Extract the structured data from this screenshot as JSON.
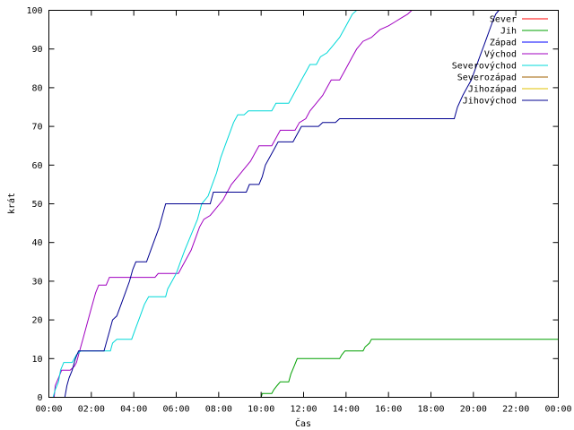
{
  "chart_data": {
    "type": "line",
    "xlabel": "Čas",
    "ylabel": "krát",
    "xlim": [
      0,
      24
    ],
    "ylim": [
      0,
      100
    ],
    "x_ticks": [
      {
        "v": 0,
        "label": "00:00"
      },
      {
        "v": 2,
        "label": "02:00"
      },
      {
        "v": 4,
        "label": "04:00"
      },
      {
        "v": 6,
        "label": "06:00"
      },
      {
        "v": 8,
        "label": "08:00"
      },
      {
        "v": 10,
        "label": "10:00"
      },
      {
        "v": 12,
        "label": "12:00"
      },
      {
        "v": 14,
        "label": "14:00"
      },
      {
        "v": 16,
        "label": "16:00"
      },
      {
        "v": 18,
        "label": "18:00"
      },
      {
        "v": 20,
        "label": "20:00"
      },
      {
        "v": 22,
        "label": "22:00"
      },
      {
        "v": 24,
        "label": "00:00"
      }
    ],
    "y_ticks": [
      {
        "v": 0,
        "label": "0"
      },
      {
        "v": 10,
        "label": "10"
      },
      {
        "v": 20,
        "label": "20"
      },
      {
        "v": 30,
        "label": "30"
      },
      {
        "v": 40,
        "label": "40"
      },
      {
        "v": 50,
        "label": "50"
      },
      {
        "v": 60,
        "label": "60"
      },
      {
        "v": 70,
        "label": "70"
      },
      {
        "v": 80,
        "label": "80"
      },
      {
        "v": 90,
        "label": "90"
      },
      {
        "v": 100,
        "label": "100"
      }
    ],
    "grid": false,
    "legend_position": "top-right",
    "series": [
      {
        "name": "Sever",
        "color": "#ff0000",
        "points": []
      },
      {
        "name": "Jih",
        "color": "#00a000",
        "points": [
          [
            10.0,
            0
          ],
          [
            10.05,
            1
          ],
          [
            10.5,
            1
          ],
          [
            10.6,
            2
          ],
          [
            10.75,
            3
          ],
          [
            10.9,
            4
          ],
          [
            11.3,
            4
          ],
          [
            11.4,
            6
          ],
          [
            11.55,
            8
          ],
          [
            11.7,
            10
          ],
          [
            13.7,
            10
          ],
          [
            13.8,
            11
          ],
          [
            13.95,
            12
          ],
          [
            14.8,
            12
          ],
          [
            14.9,
            13
          ],
          [
            15.1,
            14
          ],
          [
            15.2,
            15
          ],
          [
            24.0,
            15
          ]
        ]
      },
      {
        "name": "Západ",
        "color": "#0000ff",
        "points": []
      },
      {
        "name": "Východ",
        "color": "#a000c0",
        "points": [
          [
            0.25,
            0
          ],
          [
            0.3,
            3
          ],
          [
            0.45,
            5
          ],
          [
            0.6,
            7
          ],
          [
            1.0,
            7
          ],
          [
            1.2,
            8
          ],
          [
            1.3,
            9
          ],
          [
            1.4,
            11
          ],
          [
            1.6,
            15
          ],
          [
            1.8,
            19
          ],
          [
            2.0,
            23
          ],
          [
            2.2,
            27
          ],
          [
            2.35,
            29
          ],
          [
            2.7,
            29
          ],
          [
            2.85,
            31
          ],
          [
            5.0,
            31
          ],
          [
            5.15,
            32
          ],
          [
            6.1,
            32
          ],
          [
            6.3,
            34
          ],
          [
            6.5,
            36
          ],
          [
            6.7,
            38
          ],
          [
            6.9,
            41
          ],
          [
            7.1,
            44
          ],
          [
            7.3,
            46
          ],
          [
            7.6,
            47
          ],
          [
            7.9,
            49
          ],
          [
            8.2,
            51
          ],
          [
            8.4,
            53
          ],
          [
            8.6,
            55
          ],
          [
            8.9,
            57
          ],
          [
            9.2,
            59
          ],
          [
            9.5,
            61
          ],
          [
            9.7,
            63
          ],
          [
            9.9,
            65
          ],
          [
            10.5,
            65
          ],
          [
            10.7,
            67
          ],
          [
            10.9,
            69
          ],
          [
            11.6,
            69
          ],
          [
            11.8,
            71
          ],
          [
            12.1,
            72
          ],
          [
            12.3,
            74
          ],
          [
            12.6,
            76
          ],
          [
            12.9,
            78
          ],
          [
            13.1,
            80
          ],
          [
            13.3,
            82
          ],
          [
            13.7,
            82
          ],
          [
            13.9,
            84
          ],
          [
            14.1,
            86
          ],
          [
            14.3,
            88
          ],
          [
            14.5,
            90
          ],
          [
            14.8,
            92
          ],
          [
            15.2,
            93
          ],
          [
            15.6,
            95
          ],
          [
            16.0,
            96
          ],
          [
            16.3,
            97
          ],
          [
            16.6,
            98
          ],
          [
            16.9,
            99
          ],
          [
            17.1,
            100
          ],
          [
            17.3,
            100
          ]
        ]
      },
      {
        "name": "Severovýchod",
        "color": "#00d8d8",
        "points": [
          [
            0.2,
            0
          ],
          [
            0.3,
            2
          ],
          [
            0.45,
            4
          ],
          [
            0.55,
            7
          ],
          [
            0.7,
            9
          ],
          [
            1.1,
            9
          ],
          [
            1.3,
            11
          ],
          [
            1.5,
            12
          ],
          [
            2.9,
            12
          ],
          [
            3.0,
            14
          ],
          [
            3.2,
            15
          ],
          [
            3.9,
            15
          ],
          [
            4.1,
            18
          ],
          [
            4.3,
            21
          ],
          [
            4.5,
            24
          ],
          [
            4.7,
            26
          ],
          [
            5.5,
            26
          ],
          [
            5.6,
            28
          ],
          [
            5.8,
            30
          ],
          [
            6.0,
            32
          ],
          [
            6.2,
            35
          ],
          [
            6.4,
            38
          ],
          [
            6.7,
            42
          ],
          [
            7.0,
            46
          ],
          [
            7.2,
            50
          ],
          [
            7.5,
            52
          ],
          [
            7.7,
            55
          ],
          [
            7.9,
            58
          ],
          [
            8.1,
            62
          ],
          [
            8.3,
            65
          ],
          [
            8.5,
            68
          ],
          [
            8.7,
            71
          ],
          [
            8.9,
            73
          ],
          [
            9.2,
            73
          ],
          [
            9.4,
            74
          ],
          [
            10.5,
            74
          ],
          [
            10.7,
            76
          ],
          [
            11.3,
            76
          ],
          [
            11.5,
            78
          ],
          [
            11.7,
            80
          ],
          [
            11.9,
            82
          ],
          [
            12.1,
            84
          ],
          [
            12.3,
            86
          ],
          [
            12.6,
            86
          ],
          [
            12.8,
            88
          ],
          [
            13.1,
            89
          ],
          [
            13.4,
            91
          ],
          [
            13.7,
            93
          ],
          [
            13.9,
            95
          ],
          [
            14.1,
            97
          ],
          [
            14.3,
            99
          ],
          [
            14.5,
            100
          ],
          [
            14.7,
            100
          ]
        ]
      },
      {
        "name": "Severozápad",
        "color": "#a06000",
        "points": []
      },
      {
        "name": "Jihozápad",
        "color": "#e0c000",
        "points": []
      },
      {
        "name": "Jihovýchod",
        "color": "#000090",
        "points": [
          [
            0.75,
            0
          ],
          [
            0.85,
            3
          ],
          [
            0.95,
            5
          ],
          [
            1.1,
            7
          ],
          [
            1.25,
            10
          ],
          [
            1.4,
            12
          ],
          [
            2.6,
            12
          ],
          [
            2.7,
            14
          ],
          [
            2.85,
            17
          ],
          [
            3.0,
            20
          ],
          [
            3.2,
            21
          ],
          [
            3.4,
            24
          ],
          [
            3.6,
            27
          ],
          [
            3.8,
            30
          ],
          [
            3.95,
            33
          ],
          [
            4.1,
            35
          ],
          [
            4.6,
            35
          ],
          [
            4.8,
            38
          ],
          [
            5.0,
            41
          ],
          [
            5.2,
            44
          ],
          [
            5.35,
            47
          ],
          [
            5.5,
            50
          ],
          [
            7.6,
            50
          ],
          [
            7.75,
            53
          ],
          [
            9.3,
            53
          ],
          [
            9.45,
            55
          ],
          [
            9.9,
            55
          ],
          [
            10.05,
            57
          ],
          [
            10.2,
            60
          ],
          [
            10.4,
            62
          ],
          [
            10.6,
            64
          ],
          [
            10.8,
            66
          ],
          [
            11.5,
            66
          ],
          [
            11.7,
            68
          ],
          [
            11.9,
            70
          ],
          [
            12.7,
            70
          ],
          [
            12.9,
            71
          ],
          [
            13.5,
            71
          ],
          [
            13.7,
            72
          ],
          [
            19.1,
            72
          ],
          [
            19.25,
            75
          ],
          [
            19.5,
            78
          ],
          [
            19.7,
            80
          ],
          [
            19.9,
            82
          ],
          [
            20.1,
            85
          ],
          [
            20.3,
            88
          ],
          [
            20.5,
            91
          ],
          [
            20.7,
            94
          ],
          [
            20.9,
            97
          ],
          [
            21.05,
            99
          ],
          [
            21.2,
            100
          ]
        ]
      }
    ]
  }
}
